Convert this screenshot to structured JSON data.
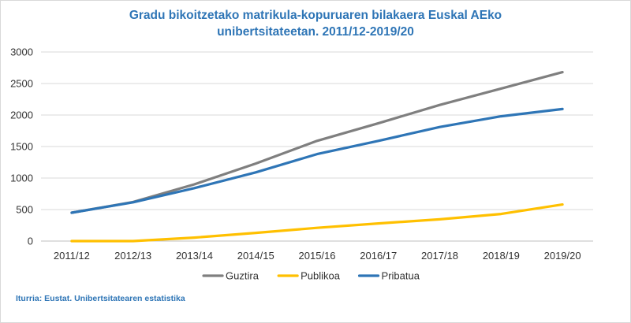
{
  "chart_data": {
    "type": "line",
    "title_line1": "Gradu bikoitzetako matrikula-kopuruaren bilakaera Euskal AEko",
    "title_line2": "unibertsitateetan. 2011/12-2019/20",
    "categories": [
      "2011/12",
      "2012/13",
      "2013/14",
      "2014/15",
      "2015/16",
      "2016/17",
      "2017/18",
      "2018/19",
      "2019/20"
    ],
    "y_ticks": [
      "0",
      "500",
      "1000",
      "1500",
      "2000",
      "2500",
      "3000"
    ],
    "ylim": [
      0,
      3000
    ],
    "grid": true,
    "legend_position": "bottom",
    "series": [
      {
        "name": "Guztira",
        "color": "#7f7f7f",
        "values": [
          450,
          620,
          900,
          1230,
          1590,
          1870,
          2160,
          2420,
          2680
        ]
      },
      {
        "name": "Publikoa",
        "color": "#ffc000",
        "values": [
          0,
          0,
          55,
          130,
          210,
          280,
          345,
          430,
          580
        ]
      },
      {
        "name": "Pribatua",
        "color": "#2e75b6",
        "values": [
          450,
          615,
          840,
          1090,
          1380,
          1590,
          1810,
          1980,
          2095
        ]
      }
    ]
  },
  "source_text": "Iturria: Eustat. Unibertsitatearen estatistika"
}
